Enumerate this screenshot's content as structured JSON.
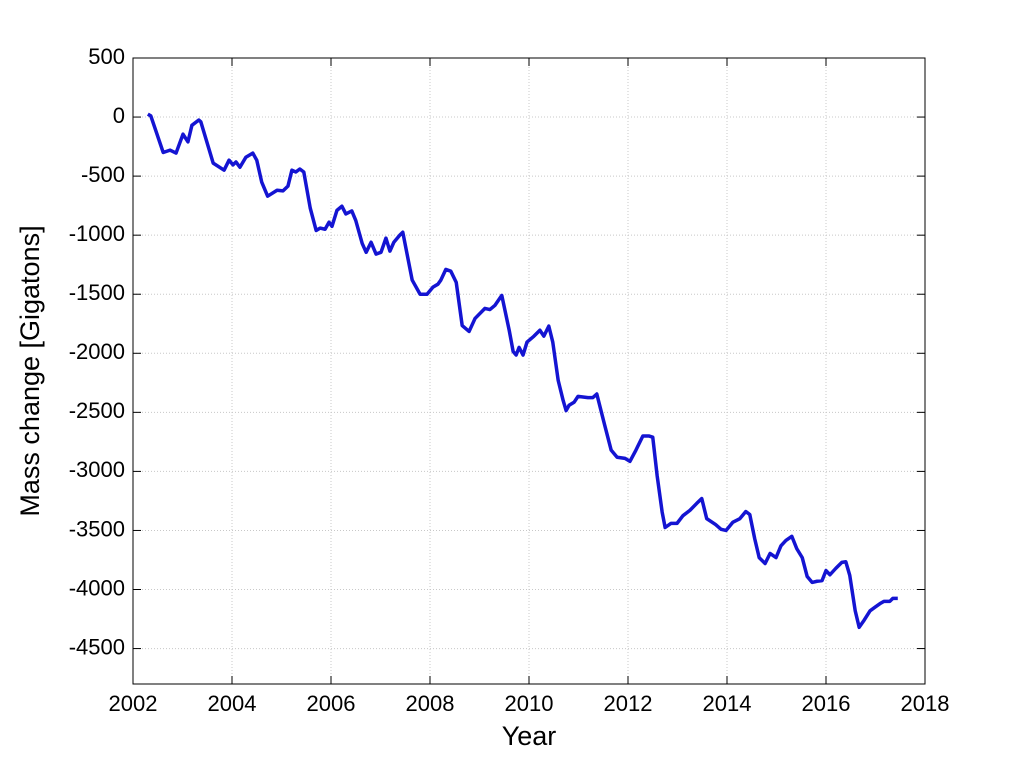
{
  "chart_data": {
    "type": "line",
    "x_label": "Year",
    "y_label": "Mass change [Gigatons]",
    "xlim": [
      2002,
      2018
    ],
    "xticks": [
      2002,
      2004,
      2006,
      2008,
      2010,
      2012,
      2014,
      2016,
      2018
    ],
    "ylim": [
      -4800,
      500
    ],
    "yticks": [
      500,
      0,
      -500,
      -1000,
      -1500,
      -2000,
      -2500,
      -3000,
      -3500,
      -4000,
      -4500
    ],
    "grid": true,
    "x": [
      2002.3,
      2002.36,
      2002.61,
      2002.75,
      2002.87,
      2003.01,
      2003.11,
      2003.19,
      2003.33,
      2003.37,
      2003.62,
      2003.84,
      2003.94,
      2004.02,
      2004.08,
      2004.16,
      2004.28,
      2004.42,
      2004.5,
      2004.6,
      2004.72,
      2004.91,
      2005.03,
      2005.13,
      2005.21,
      2005.29,
      2005.37,
      2005.45,
      2005.58,
      2005.7,
      2005.78,
      2005.88,
      2005.96,
      2006.02,
      2006.12,
      2006.22,
      2006.3,
      2006.42,
      2006.5,
      2006.63,
      2006.71,
      2006.81,
      2006.91,
      2007.01,
      2007.11,
      2007.19,
      2007.27,
      2007.39,
      2007.45,
      2007.64,
      2007.8,
      2007.94,
      2008.06,
      2008.16,
      2008.22,
      2008.32,
      2008.42,
      2008.53,
      2008.65,
      2008.79,
      2008.91,
      2009.11,
      2009.21,
      2009.31,
      2009.45,
      2009.6,
      2009.68,
      2009.74,
      2009.8,
      2009.88,
      2009.96,
      2010.1,
      2010.22,
      2010.3,
      2010.4,
      2010.48,
      2010.59,
      2010.69,
      2010.75,
      2010.81,
      2010.91,
      2010.99,
      2011.19,
      2011.29,
      2011.37,
      2011.53,
      2011.66,
      2011.78,
      2011.94,
      2012.04,
      2012.16,
      2012.3,
      2012.42,
      2012.5,
      2012.59,
      2012.69,
      2012.75,
      2012.87,
      2012.99,
      2013.11,
      2013.25,
      2013.39,
      2013.49,
      2013.59,
      2013.77,
      2013.88,
      2013.98,
      2014.12,
      2014.26,
      2014.38,
      2014.46,
      2014.56,
      2014.65,
      2014.77,
      2014.87,
      2014.99,
      2015.09,
      2015.19,
      2015.31,
      2015.41,
      2015.52,
      2015.62,
      2015.72,
      2015.82,
      2015.92,
      2016.0,
      2016.08,
      2016.2,
      2016.32,
      2016.4,
      2016.48,
      2016.59,
      2016.67,
      2016.77,
      2016.89,
      2016.99,
      2017.09,
      2017.17,
      2017.29,
      2017.35,
      2017.45
    ],
    "series": [
      {
        "color": "#1414d2",
        "values": [
          25,
          10,
          -300,
          -280,
          -305,
          -145,
          -210,
          -70,
          -25,
          -40,
          -390,
          -450,
          -365,
          -405,
          -380,
          -425,
          -340,
          -305,
          -365,
          -550,
          -670,
          -620,
          -625,
          -585,
          -450,
          -465,
          -440,
          -465,
          -770,
          -960,
          -940,
          -950,
          -890,
          -925,
          -790,
          -755,
          -820,
          -795,
          -875,
          -1070,
          -1145,
          -1060,
          -1160,
          -1145,
          -1025,
          -1135,
          -1060,
          -1000,
          -975,
          -1380,
          -1500,
          -1500,
          -1440,
          -1415,
          -1380,
          -1290,
          -1305,
          -1400,
          -1765,
          -1815,
          -1705,
          -1620,
          -1630,
          -1595,
          -1510,
          -1805,
          -1985,
          -2015,
          -1950,
          -2015,
          -1905,
          -1855,
          -1805,
          -1855,
          -1770,
          -1905,
          -2230,
          -2400,
          -2485,
          -2440,
          -2415,
          -2365,
          -2375,
          -2375,
          -2345,
          -2610,
          -2820,
          -2880,
          -2890,
          -2915,
          -2820,
          -2700,
          -2700,
          -2710,
          -3040,
          -3345,
          -3475,
          -3440,
          -3440,
          -3375,
          -3330,
          -3270,
          -3230,
          -3400,
          -3450,
          -3490,
          -3500,
          -3430,
          -3400,
          -3340,
          -3365,
          -3570,
          -3730,
          -3780,
          -3695,
          -3730,
          -3630,
          -3585,
          -3550,
          -3655,
          -3730,
          -3890,
          -3940,
          -3930,
          -3925,
          -3840,
          -3875,
          -3820,
          -3770,
          -3765,
          -3880,
          -4180,
          -4320,
          -4260,
          -4180,
          -4150,
          -4120,
          -4100,
          -4100,
          -4075,
          -4075
        ]
      }
    ]
  }
}
